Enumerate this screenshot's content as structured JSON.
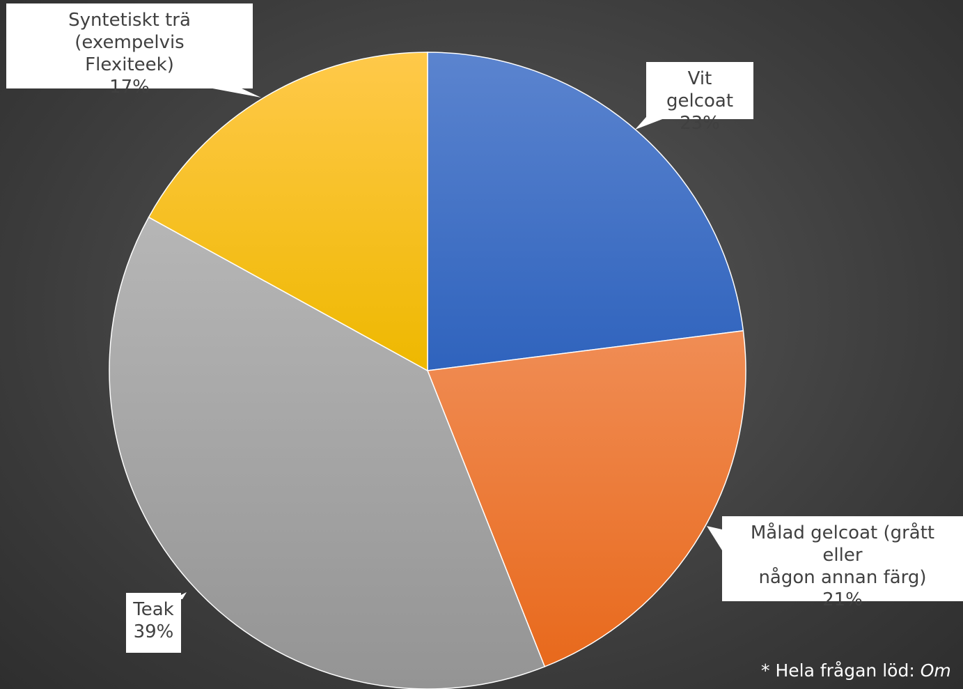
{
  "chart_data": {
    "type": "pie",
    "slices": [
      {
        "label": "Vit gelcoat",
        "value": 23,
        "display": "23%",
        "color": "#4472C4"
      },
      {
        "label": "Målad gelcoat (grått eller någon annan färg)",
        "value": 21,
        "display": "21%",
        "color": "#ED7D31"
      },
      {
        "label": "Teak",
        "value": 39,
        "display": "39%",
        "color": "#A5A5A5"
      },
      {
        "label": "Syntetiskt trä (exempelvis Flexiteek)",
        "value": 17,
        "display": "17%",
        "color": "#FFC000"
      }
    ]
  },
  "labels": {
    "vit_line1": "Vit gelcoat",
    "vit_pct": "23%",
    "malad_line1": "Målad gelcoat (grått eller",
    "malad_line2": "någon annan färg)",
    "malad_pct": "21%",
    "teak_line1": "Teak",
    "teak_pct": "39%",
    "synt_line1": "Syntetiskt trä (exempelvis",
    "synt_line2": "Flexiteek)",
    "synt_pct": "17%"
  },
  "footnote": {
    "prefix": "* Hela frågan löd: ",
    "italic": "Om"
  }
}
